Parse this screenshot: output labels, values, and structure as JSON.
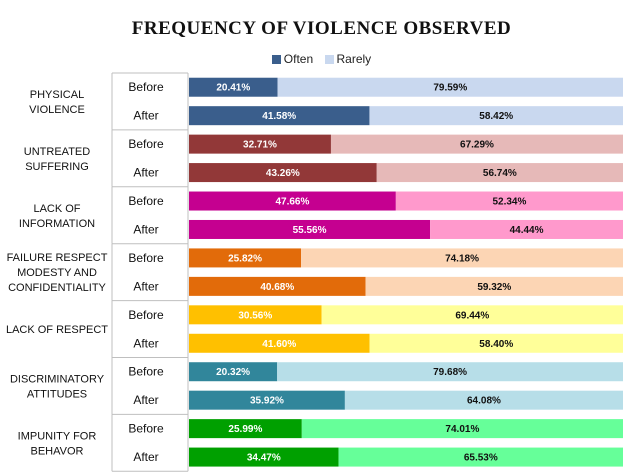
{
  "chart_data": {
    "type": "bar",
    "stacked": true,
    "orientation": "horizontal",
    "title": "FREQUENCY OF VIOLENCE OBSERVED",
    "legend_position": "top",
    "series": [
      {
        "name": "Often"
      },
      {
        "name": "Rarely"
      }
    ],
    "categories": [
      {
        "label": "PHYSICAL\nVIOLENCE",
        "often_color": "#3a5e8c",
        "rarely_color": "#c9d8ef",
        "rows": [
          {
            "label": "Before",
            "often": 20.41,
            "rarely": 79.59,
            "often_text": "20.41%",
            "rarely_text": "79.59%"
          },
          {
            "label": "After",
            "often": 41.58,
            "rarely": 58.42,
            "often_text": "41.58%",
            "rarely_text": "58.42%"
          }
        ]
      },
      {
        "label": "UNTREATED\nSUFFERING",
        "often_color": "#923838",
        "rarely_color": "#e6b9b8",
        "rows": [
          {
            "label": "Before",
            "often": 32.71,
            "rarely": 67.29,
            "often_text": "32.71%",
            "rarely_text": "67.29%"
          },
          {
            "label": "After",
            "often": 43.26,
            "rarely": 56.74,
            "often_text": "43.26%",
            "rarely_text": "56.74%"
          }
        ]
      },
      {
        "label": "LACK OF\nINFORMATION",
        "often_color": "#c50090",
        "rarely_color": "#ff99cc",
        "rows": [
          {
            "label": "Before",
            "often": 47.66,
            "rarely": 52.34,
            "often_text": "47.66%",
            "rarely_text": "52.34%"
          },
          {
            "label": "After",
            "often": 55.56,
            "rarely": 44.44,
            "often_text": "55.56%",
            "rarely_text": "44.44%"
          }
        ]
      },
      {
        "label": "FAILURE RESPECT\nMODESTY AND\nCONFIDENTIALITY",
        "often_color": "#e26b0a",
        "rarely_color": "#fcd5b4",
        "rows": [
          {
            "label": "Before",
            "often": 25.82,
            "rarely": 74.18,
            "often_text": "25.82%",
            "rarely_text": "74.18%"
          },
          {
            "label": "After",
            "often": 40.68,
            "rarely": 59.32,
            "often_text": "40.68%",
            "rarely_text": "59.32%"
          }
        ]
      },
      {
        "label": "LACK OF RESPECT",
        "often_color": "#ffc000",
        "rarely_color": "#ffff99",
        "rows": [
          {
            "label": "Before",
            "often": 30.56,
            "rarely": 69.44,
            "often_text": "30.56%",
            "rarely_text": "69.44%"
          },
          {
            "label": "After",
            "often": 41.6,
            "rarely": 58.4,
            "often_text": "41.60%",
            "rarely_text": "58.40%"
          }
        ]
      },
      {
        "label": "DISCRIMINATORY\nATTITUDES",
        "often_color": "#31869b",
        "rarely_color": "#b7dee8",
        "rows": [
          {
            "label": "Before",
            "often": 20.32,
            "rarely": 79.68,
            "often_text": "20.32%",
            "rarely_text": "79.68%"
          },
          {
            "label": "After",
            "often": 35.92,
            "rarely": 64.08,
            "often_text": "35.92%",
            "rarely_text": "64.08%"
          }
        ]
      },
      {
        "label": "IMPUNITY FOR\nBEHAVOR",
        "often_color": "#00a000",
        "rarely_color": "#66ff99",
        "rows": [
          {
            "label": "Before",
            "often": 25.99,
            "rarely": 74.01,
            "often_text": "25.99%",
            "rarely_text": "74.01%"
          },
          {
            "label": "After",
            "often": 34.47,
            "rarely": 65.53,
            "often_text": "34.47%",
            "rarely_text": "65.53%"
          }
        ]
      }
    ]
  }
}
